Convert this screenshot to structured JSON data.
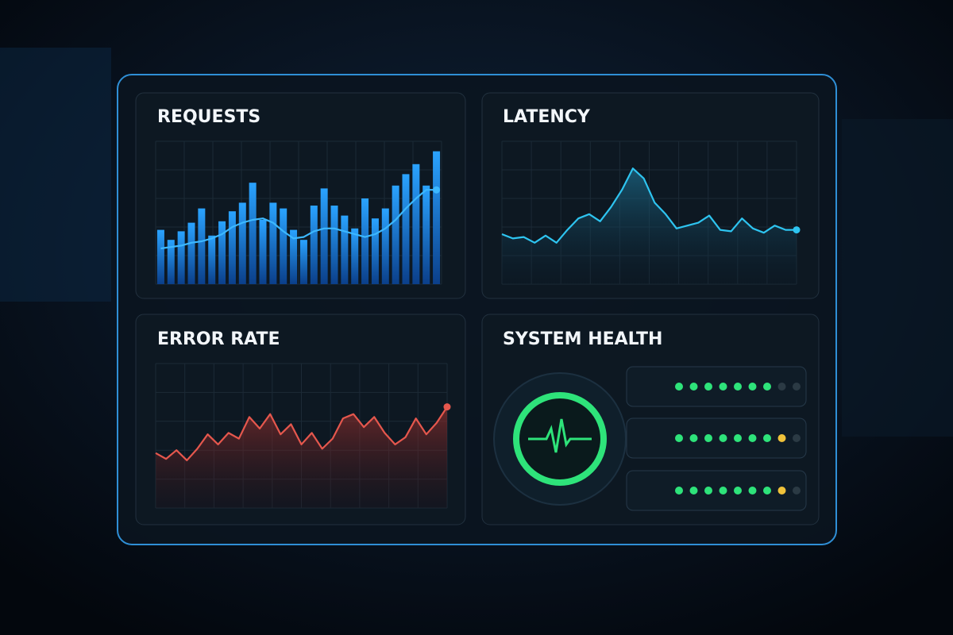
{
  "chart_data": [
    {
      "type": "bar",
      "title": "REQUESTS",
      "ylim": [
        0,
        100
      ],
      "grid": true,
      "series": [
        {
          "type": "bar",
          "color": "#1e8fe8",
          "values": [
            38,
            31,
            37,
            43,
            53,
            34,
            44,
            51,
            57,
            71,
            45,
            57,
            53,
            38,
            31,
            55,
            67,
            55,
            48,
            39,
            60,
            46,
            53,
            69,
            77,
            84,
            69,
            93
          ]
        },
        {
          "type": "line",
          "color": "#3cb8ff",
          "values": [
            25,
            26,
            27,
            29,
            30,
            32,
            35,
            40,
            43,
            45,
            46,
            43,
            37,
            32,
            33,
            37,
            39,
            39,
            37,
            35,
            33,
            35,
            39,
            45,
            53,
            60,
            66,
            66
          ]
        }
      ]
    },
    {
      "type": "line",
      "title": "LATENCY",
      "ylim": [
        0,
        100
      ],
      "grid": true,
      "series": [
        {
          "type": "line",
          "color": "#2ec4f0",
          "values": [
            35,
            32,
            33,
            29,
            34,
            29,
            38,
            46,
            49,
            44,
            54,
            66,
            81,
            74,
            57,
            49,
            39,
            41,
            43,
            48,
            38,
            37,
            46,
            39,
            36,
            41,
            38,
            38
          ]
        }
      ]
    },
    {
      "type": "line",
      "title": "ERROR RATE",
      "ylim": [
        0,
        100
      ],
      "grid": true,
      "series": [
        {
          "type": "line",
          "color": "#e5574d",
          "values": [
            38,
            34,
            40,
            33,
            41,
            51,
            44,
            52,
            48,
            63,
            55,
            65,
            51,
            58,
            44,
            52,
            41,
            48,
            62,
            65,
            56,
            63,
            52,
            44,
            49,
            62,
            51,
            59,
            70
          ]
        }
      ]
    }
  ],
  "system_health": {
    "title": "SYSTEM HEALTH",
    "rows": [
      {
        "dots": [
          "#2ee37a",
          "#2ee37a",
          "#2ee37a",
          "#2ee37a",
          "#2ee37a",
          "#2ee37a",
          "#2ee37a",
          "#2b3a44",
          "#2b3a44"
        ]
      },
      {
        "dots": [
          "#2ee37a",
          "#2ee37a",
          "#2ee37a",
          "#2ee37a",
          "#2ee37a",
          "#2ee37a",
          "#2ee37a",
          "#f0c23a",
          "#2b3a44"
        ]
      },
      {
        "dots": [
          "#2ee37a",
          "#2ee37a",
          "#2ee37a",
          "#2ee37a",
          "#2ee37a",
          "#2ee37a",
          "#2ee37a",
          "#f0c23a",
          "#2b3a44"
        ]
      }
    ]
  }
}
